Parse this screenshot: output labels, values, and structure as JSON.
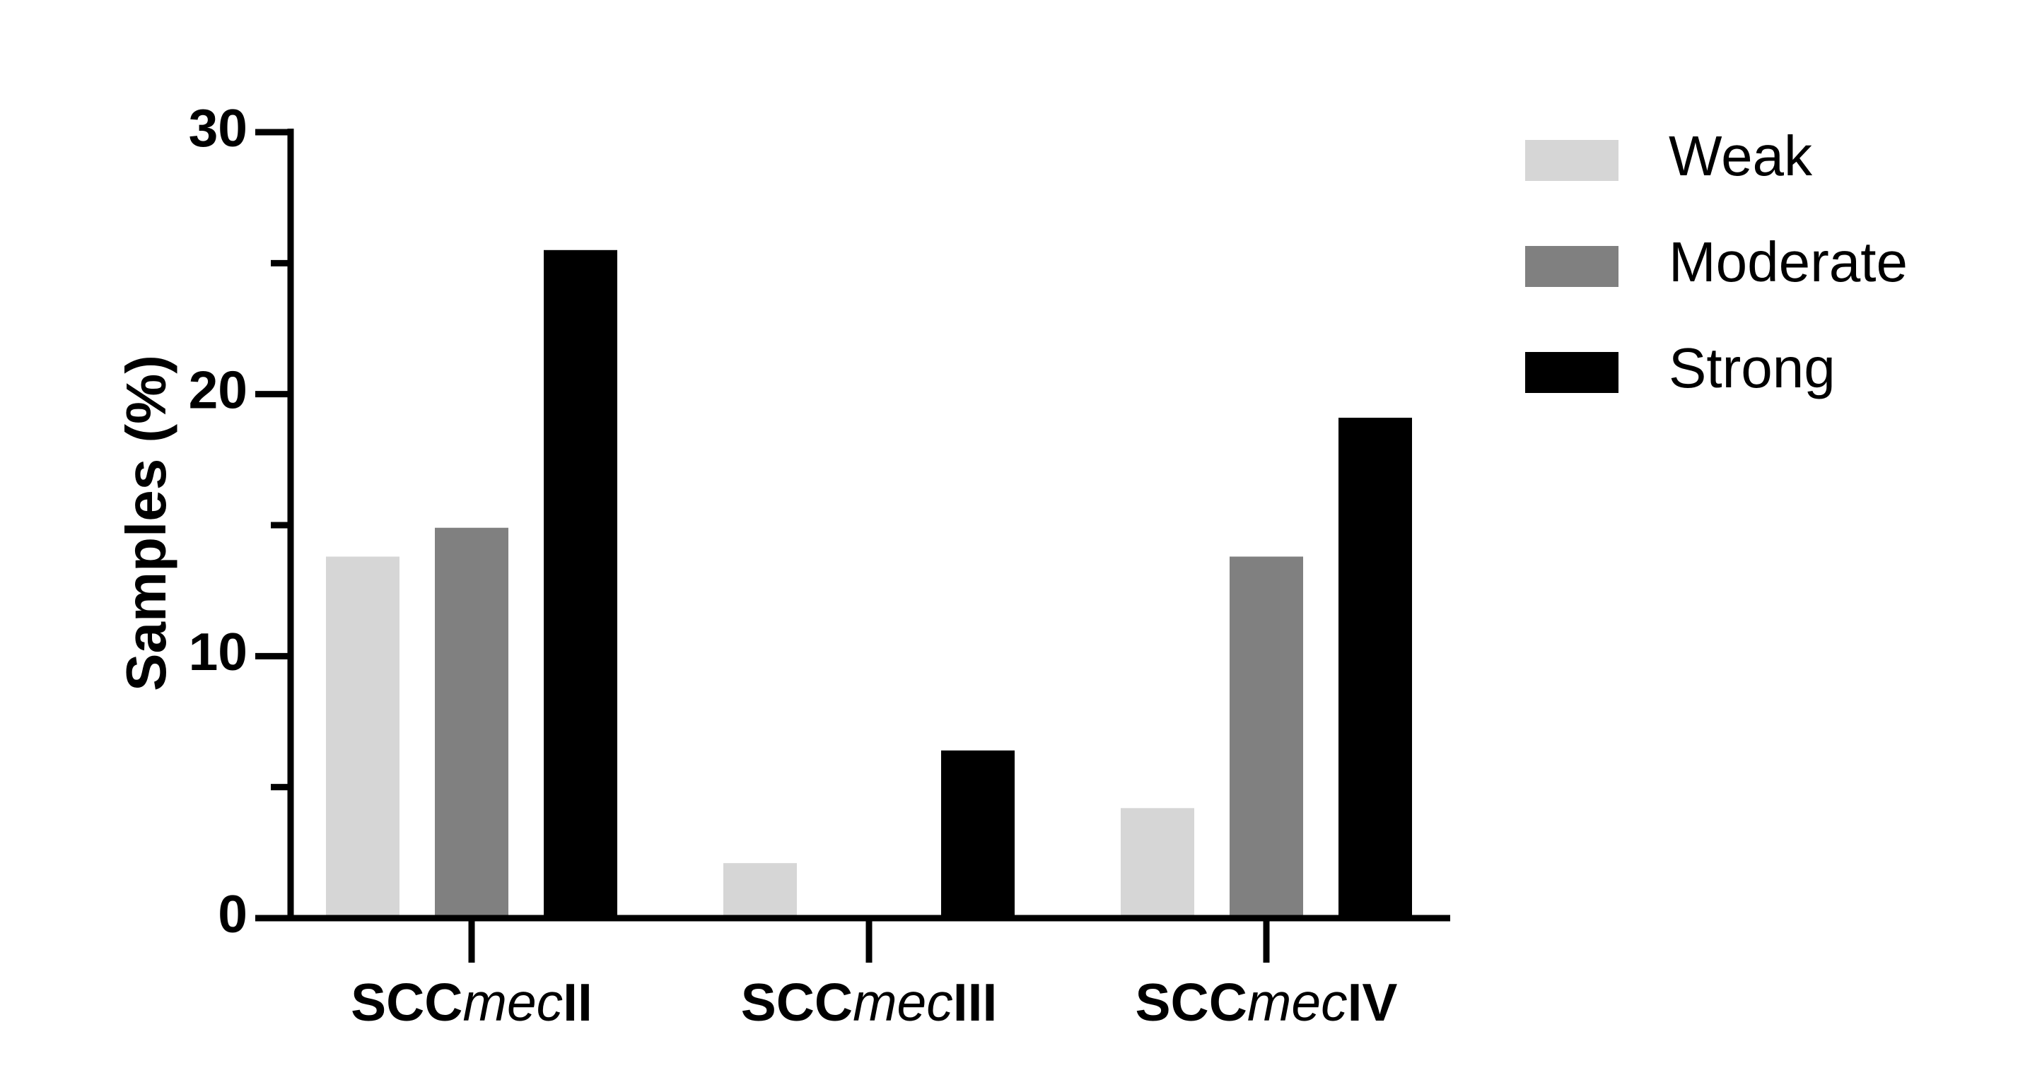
{
  "chart_data": {
    "type": "bar",
    "title": "",
    "xlabel": "",
    "ylabel": "Samples (%)",
    "ylim": [
      0,
      30
    ],
    "yticks_major": [
      0,
      10,
      20,
      30
    ],
    "yticks_minor": [
      5,
      15,
      25
    ],
    "categories": [
      {
        "prefix": "SCC",
        "italic": "mec",
        "suffix": "II"
      },
      {
        "prefix": "SCC",
        "italic": "mec",
        "suffix": "III"
      },
      {
        "prefix": "SCC",
        "italic": "mec",
        "suffix": "IV"
      }
    ],
    "series": [
      {
        "name": "Weak",
        "color": "#d6d6d6",
        "values": [
          13.8,
          2.1,
          4.2
        ]
      },
      {
        "name": "Moderate",
        "color": "#808080",
        "values": [
          14.9,
          0,
          13.8
        ]
      },
      {
        "name": "Strong",
        "color": "#000000",
        "values": [
          25.5,
          6.4,
          19.1
        ]
      }
    ],
    "grid": false,
    "legend_position": "top-right"
  }
}
